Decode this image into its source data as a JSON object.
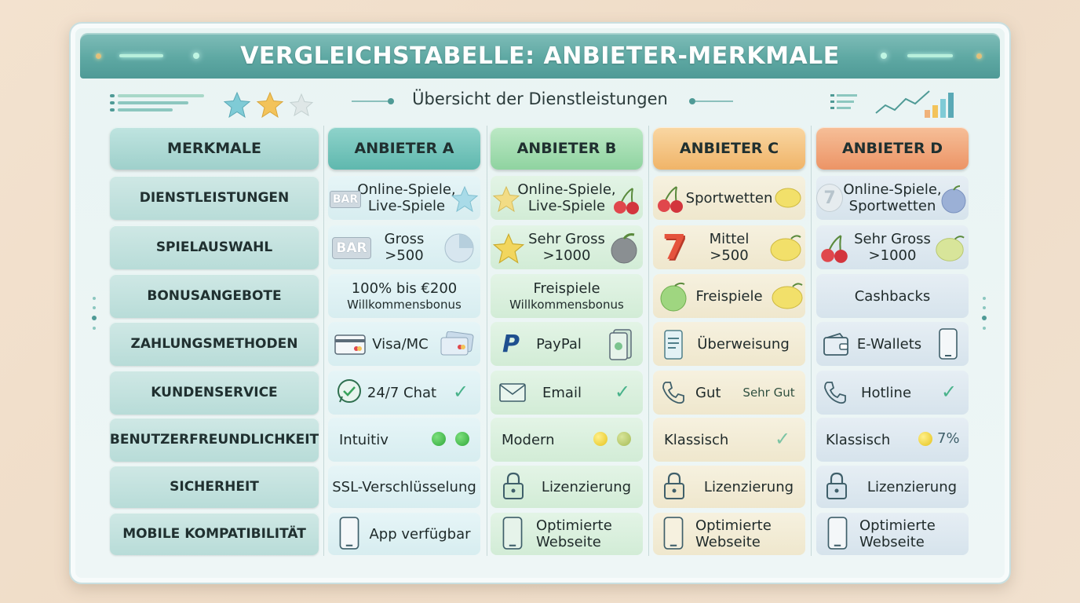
{
  "title": "VERGLEICHSTABELLE: ANBIETER-MERKMALE",
  "subtitle": "Übersicht der Dienstleistungen",
  "headers": [
    "MERKMALE",
    "ANBIETER A",
    "ANBIETER B",
    "ANBIETER C",
    "ANBIETER D"
  ],
  "header_colors": [
    "#a9d8d4",
    "#6fc4bb",
    "#9fdcae",
    "#f3c27d",
    "#ef9f72"
  ],
  "rows": [
    {
      "label": "DIENSTLEISTUNGEN",
      "a": [
        "Online-Spiele,",
        "Live-Spiele"
      ],
      "b": [
        "Online-Spiele,",
        "Live-Spiele"
      ],
      "c": [
        "Sportwetten"
      ],
      "d": [
        "Online-Spiele,",
        "Sportwetten"
      ]
    },
    {
      "label": "SPIELAUSWAHL",
      "a": [
        "Gross",
        ">500"
      ],
      "b": [
        "Sehr Gross",
        ">1000"
      ],
      "c": [
        "Mittel",
        ">500"
      ],
      "d": [
        "Sehr Gross",
        ">1000"
      ]
    },
    {
      "label": "BONUSANGEBOTE",
      "a": [
        "100% bis €200",
        "Willkommensbonus"
      ],
      "b": [
        "Freispiele",
        "Willkommensbonus"
      ],
      "c": [
        "Freispiele"
      ],
      "d": [
        "Cashbacks"
      ]
    },
    {
      "label": "ZAHLUNGSMETHODEN",
      "a": [
        "Visa/MC"
      ],
      "b": [
        "PayPal"
      ],
      "c": [
        "Überweisung"
      ],
      "d": [
        "E-Wallets"
      ]
    },
    {
      "label": "KUNDENSERVICE",
      "a": [
        "24/7 Chat"
      ],
      "b": [
        "Email"
      ],
      "c": [
        "Gut"
      ],
      "c_extra": "Sehr Gut",
      "d": [
        "Hotline"
      ]
    },
    {
      "label": "BENUTZERFREUNDLICHKEIT",
      "a": [
        "Intuitiv"
      ],
      "b": [
        "Modern"
      ],
      "c": [
        "Klassisch"
      ],
      "d": [
        "Klassisch"
      ],
      "d_extra": "7%"
    },
    {
      "label": "SICHERHEIT",
      "a": [
        "SSL-Verschlüsselung"
      ],
      "b": [
        "Lizenzierung"
      ],
      "c": [
        "Lizenzierung"
      ],
      "d": [
        "Lizenzierung"
      ]
    },
    {
      "label": "MOBILE KOMPATIBILITÄT",
      "a": [
        "App verfügbar"
      ],
      "b": [
        "Optimierte",
        "Webseite"
      ],
      "c": [
        "Optimierte",
        "Webseite"
      ],
      "d": [
        "Optimierte",
        "Webseite"
      ]
    }
  ],
  "icons": {
    "bar_label": "BAR",
    "seven_label": "7",
    "check": "✓"
  }
}
